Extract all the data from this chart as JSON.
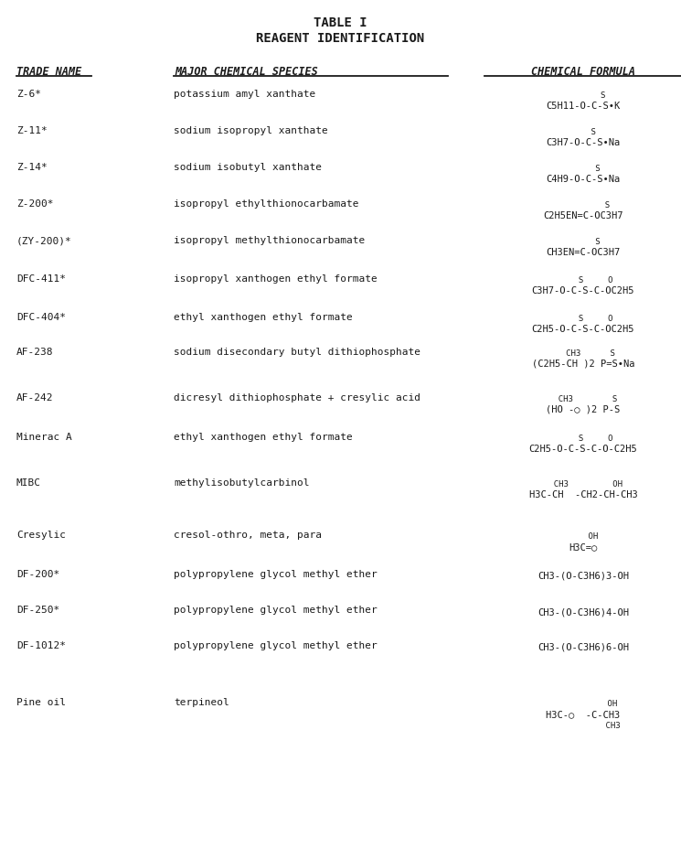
{
  "title1": "TABLE I",
  "title2": "REAGENT IDENTIFICATION",
  "col_headers": [
    "TRADE NAME",
    "MAJOR CHEMICAL SPECIES",
    "CHEMICAL FORMULA"
  ],
  "bg_color": "#ffffff",
  "text_color": "#1a1a1a",
  "rows": [
    {
      "trade": "Z-6*",
      "species": "potassium amyl xanthate",
      "formula": [
        "        S",
        "C5H11-O-C-S•K"
      ]
    },
    {
      "trade": "Z-11*",
      "species": "sodium isopropyl xanthate",
      "formula": [
        "    S",
        "C3H7-O-C-S•Na"
      ]
    },
    {
      "trade": "Z-14*",
      "species": "sodium isobutyl xanthate",
      "formula": [
        "      S",
        "C4H9-O-C-S•Na"
      ]
    },
    {
      "trade": "Z-200*",
      "species": "isopropyl ethylthionocarbamate",
      "formula": [
        "          S",
        "C2H5EN=C-OC3H7"
      ]
    },
    {
      "trade": "(ZY-200)*",
      "species": "isopropyl methylthionocarbamate",
      "formula": [
        "      S",
        "CH3EN=C-OC3H7"
      ]
    },
    {
      "trade": "DFC-411*",
      "species": "isopropyl xanthogen ethyl formate",
      "formula": [
        "     S     O",
        "C3H7-O-C-S-C-OC2H5"
      ]
    },
    {
      "trade": "DFC-404*",
      "species": "ethyl xanthogen ethyl formate",
      "formula": [
        "     S     O",
        "C2H5-O-C-S-C-OC2H5"
      ]
    },
    {
      "trade": "AF-238",
      "species": "sodium disecondary butyl dithiophosphate",
      "formula": [
        "   CH3      S",
        "(C2H5-CH )2 P=S•Na"
      ]
    },
    {
      "trade": "AF-242",
      "species": "dicresyl dithiophosphate + cresylic acid",
      "formula": [
        "  CH3        S",
        "(HO -○ )2 P-S"
      ]
    },
    {
      "trade": "Minerac A",
      "species": "ethyl xanthogen ethyl formate",
      "formula": [
        "     S     O",
        "C2H5-O-C-S-C-O-C2H5"
      ]
    },
    {
      "trade": "MIBC",
      "species": "methylisobutylcarbinol",
      "formula": [
        "  CH3         OH",
        "H3C-CH  -CH2-CH-CH3"
      ]
    },
    {
      "trade": "Cresylic",
      "species": "cresol-othro, meta, para",
      "formula": [
        "    OH",
        "H3C=○"
      ]
    },
    {
      "trade": "DF-200*",
      "species": "polypropylene glycol methyl ether",
      "formula": [
        "CH3-(O-C3H6)3-OH"
      ]
    },
    {
      "trade": "DF-250*",
      "species": "polypropylene glycol methyl ether",
      "formula": [
        "CH3-(O-C3H6)4-OH"
      ]
    },
    {
      "trade": "DF-1012*",
      "species": "polypropylene glycol methyl ether",
      "formula": [
        "CH3-(O-C3H6)6-OH"
      ]
    },
    {
      "trade": "Pine oil",
      "species": "terpineol",
      "formula": [
        "            OH",
        "H3C-○  -C-CH3",
        "            CH3"
      ]
    }
  ]
}
